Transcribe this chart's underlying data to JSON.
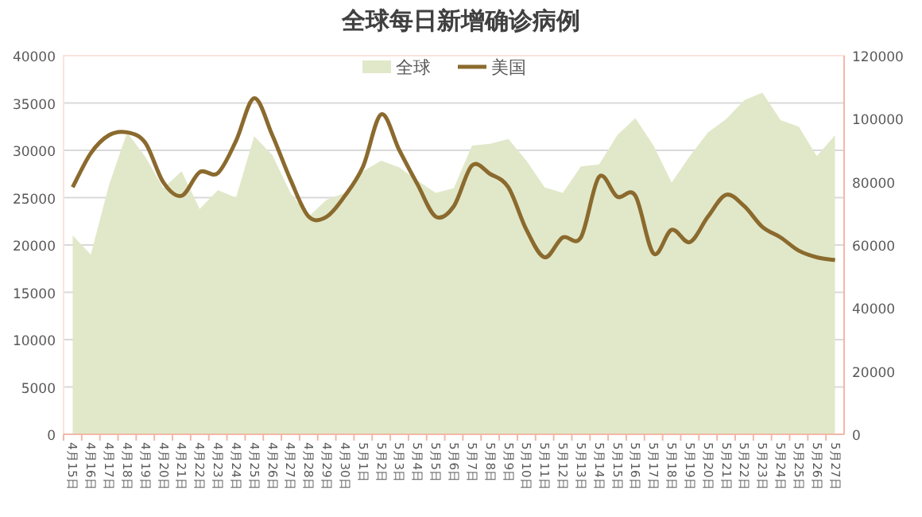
{
  "chart_data": {
    "type": "line",
    "title": "全球每日新增确诊病例",
    "categories": [
      "4月15日",
      "4月16日",
      "4月17日",
      "4月18日",
      "4月19日",
      "4月20日",
      "4月21日",
      "4月22日",
      "4月23日",
      "4月24日",
      "4月25日",
      "4月26日",
      "4月27日",
      "4月28日",
      "4月29日",
      "4月30日",
      "5月1日",
      "5月2日",
      "5月3日",
      "5月4日",
      "5月5日",
      "5月6日",
      "5月7日",
      "5月8日",
      "5月9日",
      "5月10日",
      "5月11日",
      "5月12日",
      "5月13日",
      "5月14日",
      "5月15日",
      "5月16日",
      "5月17日",
      "5月18日",
      "5月19日",
      "5月20日",
      "5月21日",
      "5月22日",
      "5月23日",
      "5月24日",
      "5月25日",
      "5月26日",
      "5月27日"
    ],
    "series": [
      {
        "name": "全球",
        "type": "area",
        "axis": "y2",
        "color": "#e1e8c9",
        "values": [
          63000,
          57000,
          79000,
          95700,
          88000,
          78000,
          83400,
          71400,
          77400,
          75000,
          94500,
          88500,
          76500,
          69000,
          74400,
          76500,
          83400,
          86700,
          84600,
          80400,
          76500,
          78000,
          91500,
          92100,
          93600,
          86700,
          78300,
          76500,
          84900,
          85500,
          94800,
          100200,
          91500,
          79800,
          88200,
          95700,
          99900,
          105900,
          108300,
          99600,
          97500,
          88200,
          94800
        ]
      },
      {
        "name": "美国",
        "type": "line",
        "color": "#8b6a2e",
        "values": [
          26100,
          29700,
          31600,
          31900,
          30800,
          26600,
          25200,
          27700,
          27600,
          31000,
          35500,
          31600,
          26900,
          23000,
          23000,
          25200,
          28300,
          33800,
          30000,
          26400,
          23000,
          24100,
          28400,
          27500,
          26100,
          21600,
          18700,
          20800,
          20800,
          27200,
          25100,
          25200,
          19100,
          21600,
          20300,
          23000,
          25300,
          24100,
          21900,
          20800,
          19400,
          18700,
          18400
        ]
      }
    ],
    "ylim": [
      0,
      40000
    ],
    "yticks": [
      0,
      5000,
      10000,
      15000,
      20000,
      25000,
      30000,
      35000,
      40000
    ],
    "y2lim": [
      0,
      120000
    ],
    "y2ticks": [
      0,
      20000,
      40000,
      60000,
      80000,
      100000,
      120000
    ],
    "grid": "y",
    "legend": "top"
  }
}
